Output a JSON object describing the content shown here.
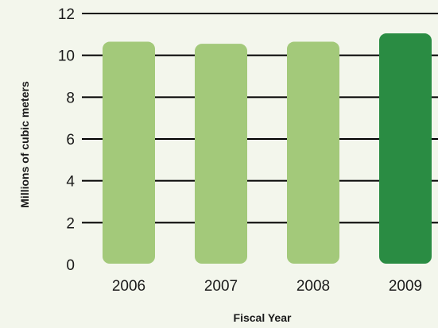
{
  "chart_data": {
    "type": "bar",
    "categories": [
      "2006",
      "2007",
      "2008",
      "2009"
    ],
    "values": [
      10.65,
      10.55,
      10.65,
      11.05
    ],
    "xlabel": "Fiscal Year",
    "ylabel": "Millions of cubic meters",
    "ylim": [
      0,
      12
    ],
    "yticks": [
      0,
      2,
      4,
      6,
      8,
      10,
      12
    ],
    "grid": true,
    "highlight_index": 3,
    "colors": {
      "bar": "#a3c97a",
      "bar_highlight": "#2a8c43",
      "grid": "#000000",
      "background": "#f3f6ec"
    }
  }
}
